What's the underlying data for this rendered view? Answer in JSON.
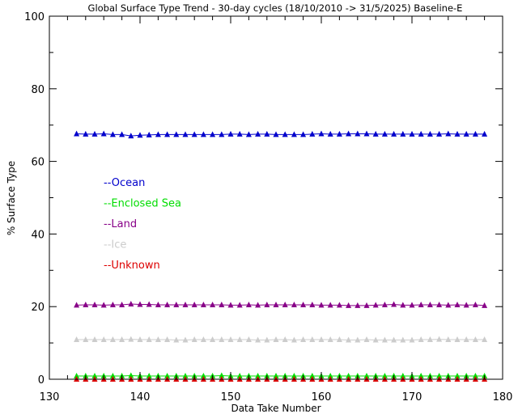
{
  "chart_data": {
    "type": "line",
    "title": "Global Surface Type Trend - 30-day cycles (18/10/2010 -> 31/5/2025) Baseline-E",
    "xlabel": "Data Take Number",
    "ylabel": "% Surface Type",
    "xlim": [
      130,
      180
    ],
    "ylim": [
      0,
      100
    ],
    "xticks": [
      "130",
      "140",
      "150",
      "160",
      "170",
      "180"
    ],
    "yticks": [
      "0",
      "20",
      "40",
      "60",
      "80",
      "100"
    ],
    "x": [
      133,
      134,
      135,
      136,
      137,
      138,
      139,
      140,
      141,
      142,
      143,
      144,
      145,
      146,
      147,
      148,
      149,
      150,
      151,
      152,
      153,
      154,
      155,
      156,
      157,
      158,
      159,
      160,
      161,
      162,
      163,
      164,
      165,
      166,
      167,
      168,
      169,
      170,
      171,
      172,
      173,
      174,
      175,
      176,
      177,
      178
    ],
    "legend_position": "left-middle",
    "marker": "triangle",
    "series": [
      {
        "name": "Ocean",
        "color": "#0000cc",
        "values": [
          67.6,
          67.5,
          67.5,
          67.6,
          67.4,
          67.4,
          67.0,
          67.2,
          67.3,
          67.4,
          67.4,
          67.4,
          67.4,
          67.4,
          67.4,
          67.4,
          67.4,
          67.5,
          67.5,
          67.4,
          67.5,
          67.5,
          67.4,
          67.4,
          67.4,
          67.4,
          67.5,
          67.6,
          67.5,
          67.5,
          67.6,
          67.6,
          67.6,
          67.5,
          67.5,
          67.5,
          67.5,
          67.5,
          67.5,
          67.5,
          67.5,
          67.6,
          67.5,
          67.5,
          67.5,
          67.5
        ]
      },
      {
        "name": "Enclosed Sea",
        "color": "#00dd00",
        "values": [
          0.9,
          0.9,
          0.9,
          0.9,
          0.9,
          0.9,
          1.0,
          0.9,
          0.9,
          0.9,
          0.9,
          0.9,
          0.9,
          0.9,
          0.9,
          0.9,
          1.0,
          0.9,
          0.9,
          0.9,
          0.9,
          0.9,
          0.9,
          0.9,
          0.9,
          0.9,
          0.9,
          0.9,
          0.9,
          0.9,
          0.9,
          0.9,
          0.9,
          0.9,
          0.9,
          0.9,
          0.9,
          0.9,
          0.9,
          0.9,
          0.9,
          0.9,
          0.9,
          0.9,
          0.9,
          0.9
        ]
      },
      {
        "name": "Land",
        "color": "#880088",
        "values": [
          20.4,
          20.5,
          20.5,
          20.4,
          20.5,
          20.5,
          20.7,
          20.6,
          20.6,
          20.5,
          20.5,
          20.5,
          20.5,
          20.5,
          20.5,
          20.5,
          20.5,
          20.4,
          20.4,
          20.5,
          20.4,
          20.5,
          20.5,
          20.5,
          20.5,
          20.5,
          20.5,
          20.4,
          20.4,
          20.4,
          20.3,
          20.3,
          20.3,
          20.4,
          20.5,
          20.6,
          20.4,
          20.4,
          20.5,
          20.5,
          20.5,
          20.4,
          20.5,
          20.4,
          20.5,
          20.3
        ]
      },
      {
        "name": "Ice",
        "color": "#cccccc",
        "values": [
          10.9,
          10.9,
          10.9,
          10.9,
          10.9,
          10.9,
          11.0,
          10.9,
          10.9,
          10.9,
          10.9,
          10.8,
          10.8,
          10.9,
          10.9,
          10.9,
          10.9,
          10.9,
          10.9,
          10.9,
          10.8,
          10.8,
          10.9,
          10.9,
          10.8,
          10.9,
          10.9,
          10.9,
          10.9,
          10.9,
          10.8,
          10.8,
          10.9,
          10.8,
          10.8,
          10.8,
          10.8,
          10.8,
          10.9,
          10.9,
          11.0,
          10.9,
          10.9,
          10.9,
          10.9,
          10.9
        ]
      },
      {
        "name": "Unknown",
        "color": "#dd0000",
        "values": [
          0,
          0,
          0,
          0,
          0,
          0,
          0,
          0,
          0,
          0,
          0,
          0,
          0,
          0,
          0,
          0,
          0,
          0,
          0,
          0,
          0,
          0,
          0,
          0,
          0,
          0,
          0,
          0,
          0,
          0,
          0,
          0,
          0,
          0,
          0,
          0,
          0,
          0,
          0,
          0,
          0,
          0,
          0,
          0,
          0,
          0
        ]
      }
    ]
  }
}
